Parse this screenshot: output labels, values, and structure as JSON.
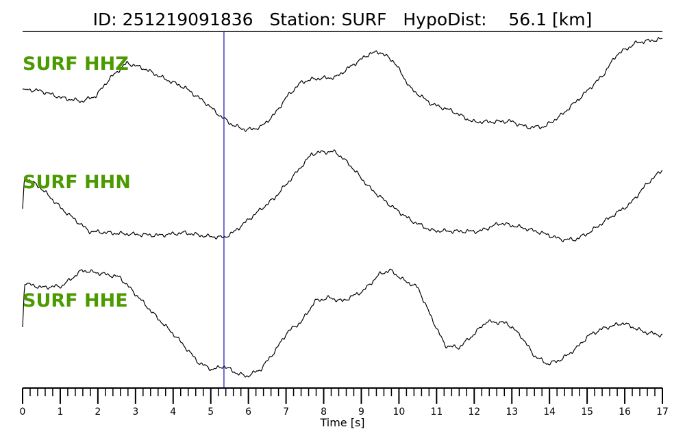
{
  "chart_data": {
    "type": "line",
    "title": "ID: 251219091836   Station: SURF   HypoDist:    56.1 [km]",
    "xlabel": "Time [s]",
    "xlim": [
      0,
      17
    ],
    "x_ticks": [
      "0",
      "1",
      "2",
      "3",
      "4",
      "5",
      "6",
      "7",
      "8",
      "9",
      "10",
      "11",
      "12",
      "13",
      "14",
      "15",
      "16",
      "17"
    ],
    "minor_tick_step": 0.2,
    "grid": false,
    "marker_line": {
      "time": 5.35,
      "color": "#2020c0"
    },
    "label_color": "#4a9a00",
    "trace_color": "#000000",
    "series": [
      {
        "name": "SURF HHZ",
        "points": [
          [
            0,
            -5
          ],
          [
            0.49,
            -8
          ],
          [
            1.04,
            -18
          ],
          [
            1.58,
            -23
          ],
          [
            1.95,
            -15
          ],
          [
            2.31,
            10
          ],
          [
            2.77,
            33
          ],
          [
            3.22,
            25
          ],
          [
            3.77,
            10
          ],
          [
            4.31,
            -3
          ],
          [
            4.86,
            -25
          ],
          [
            5.22,
            -43
          ],
          [
            5.59,
            -58
          ],
          [
            5.95,
            -65
          ],
          [
            6.32,
            -61
          ],
          [
            6.68,
            -43
          ],
          [
            7.04,
            -15
          ],
          [
            7.41,
            5
          ],
          [
            7.77,
            10
          ],
          [
            8.32,
            12
          ],
          [
            8.77,
            30
          ],
          [
            9.23,
            47
          ],
          [
            9.5,
            49
          ],
          [
            9.87,
            35
          ],
          [
            10.32,
            -5
          ],
          [
            10.87,
            -27
          ],
          [
            11.41,
            -37
          ],
          [
            11.96,
            -53
          ],
          [
            12.5,
            -53
          ],
          [
            12.96,
            -52
          ],
          [
            13.41,
            -61
          ],
          [
            13.87,
            -60
          ],
          [
            14.32,
            -43
          ],
          [
            14.87,
            -15
          ],
          [
            15.42,
            15
          ],
          [
            15.78,
            45
          ],
          [
            16.33,
            63
          ],
          [
            17,
            68
          ]
        ]
      },
      {
        "name": "SURF HHN",
        "points": [
          [
            0,
            -15
          ],
          [
            0.05,
            32
          ],
          [
            0.49,
            15
          ],
          [
            1.04,
            -15
          ],
          [
            1.77,
            -48
          ],
          [
            2.49,
            -51
          ],
          [
            3.59,
            -54
          ],
          [
            4.31,
            -50
          ],
          [
            4.86,
            -55
          ],
          [
            5.35,
            -57
          ],
          [
            5.59,
            -50
          ],
          [
            6.13,
            -25
          ],
          [
            6.68,
            0
          ],
          [
            7.23,
            35
          ],
          [
            7.68,
            65
          ],
          [
            7.95,
            68
          ],
          [
            8.32,
            68
          ],
          [
            8.68,
            50
          ],
          [
            9.23,
            15
          ],
          [
            9.77,
            -10
          ],
          [
            10.32,
            -32
          ],
          [
            10.87,
            -47
          ],
          [
            11.59,
            -48
          ],
          [
            12.14,
            -48
          ],
          [
            12.69,
            -36
          ],
          [
            13.23,
            -42
          ],
          [
            13.78,
            -50
          ],
          [
            14.32,
            -60
          ],
          [
            14.69,
            -60
          ],
          [
            15.05,
            -50
          ],
          [
            15.6,
            -28
          ],
          [
            16.14,
            -8
          ],
          [
            16.6,
            22
          ],
          [
            17,
            42
          ]
        ]
      },
      {
        "name": "SURF HHE",
        "points": [
          [
            0,
            -8
          ],
          [
            0.05,
            54
          ],
          [
            0.13,
            55
          ],
          [
            0.49,
            50
          ],
          [
            1.04,
            52
          ],
          [
            1.58,
            75
          ],
          [
            2.13,
            70
          ],
          [
            2.58,
            65
          ],
          [
            3.04,
            38
          ],
          [
            3.59,
            5
          ],
          [
            4.13,
            -25
          ],
          [
            4.68,
            -60
          ],
          [
            5.04,
            -70
          ],
          [
            5.35,
            -65
          ],
          [
            5.68,
            -75
          ],
          [
            5.95,
            -80
          ],
          [
            6.32,
            -70
          ],
          [
            6.68,
            -45
          ],
          [
            7.04,
            -15
          ],
          [
            7.41,
            0
          ],
          [
            7.77,
            30
          ],
          [
            8.14,
            35
          ],
          [
            8.5,
            30
          ],
          [
            9.05,
            45
          ],
          [
            9.5,
            70
          ],
          [
            9.77,
            75
          ],
          [
            10.14,
            60
          ],
          [
            10.5,
            50
          ],
          [
            10.87,
            5
          ],
          [
            11.23,
            -35
          ],
          [
            11.59,
            -38
          ],
          [
            11.96,
            -20
          ],
          [
            12.32,
            0
          ],
          [
            12.87,
            -2
          ],
          [
            13.23,
            -20
          ],
          [
            13.6,
            -50
          ],
          [
            13.96,
            -62
          ],
          [
            14.32,
            -55
          ],
          [
            14.69,
            -40
          ],
          [
            15.05,
            -20
          ],
          [
            15.42,
            -10
          ],
          [
            15.96,
            -2
          ],
          [
            16.51,
            -15
          ],
          [
            17,
            -20
          ]
        ]
      }
    ]
  }
}
